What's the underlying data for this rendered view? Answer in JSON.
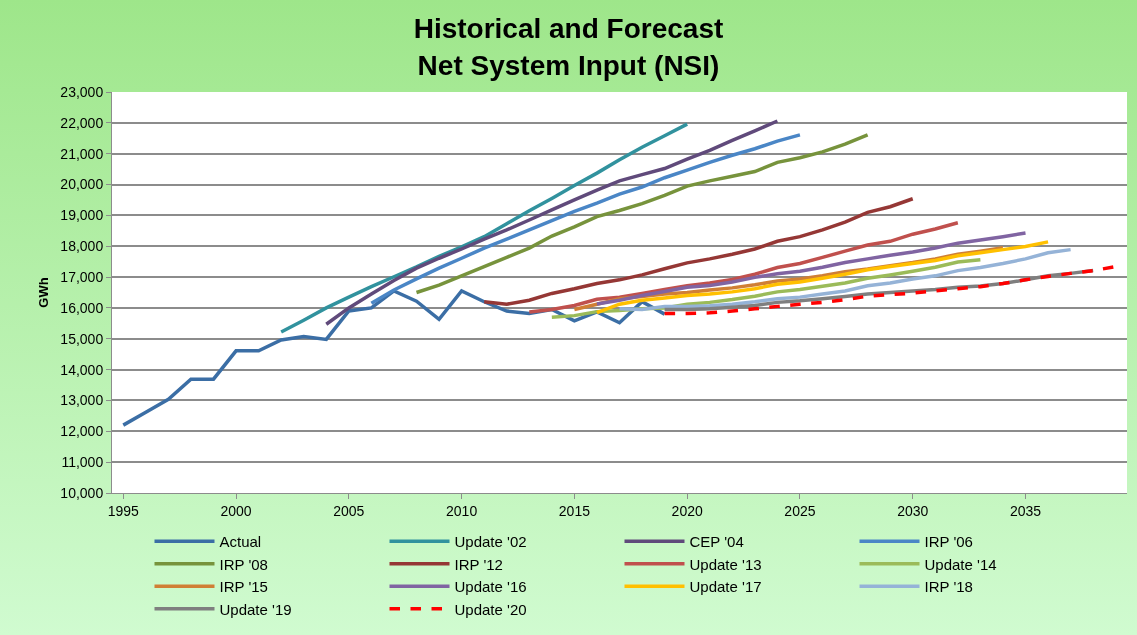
{
  "chart_data": {
    "type": "line",
    "title": "Historical and Forecast\nNet System Input (NSI)",
    "ylabel": "GWh",
    "xlim": [
      1994.5,
      2039.5
    ],
    "xticks": [
      1995,
      2000,
      2005,
      2010,
      2015,
      2020,
      2025,
      2030,
      2035
    ],
    "ylim": [
      10000,
      23000
    ],
    "yticks": [
      {
        "value": 10000,
        "label": "10,000"
      },
      {
        "value": 11000,
        "label": "11,000"
      },
      {
        "value": 12000,
        "label": "12,000"
      },
      {
        "value": 13000,
        "label": "13,000"
      },
      {
        "value": 14000,
        "label": "14,000"
      },
      {
        "value": 15000,
        "label": "15,000"
      },
      {
        "value": 16000,
        "label": "16,000"
      },
      {
        "value": 17000,
        "label": "17,000"
      },
      {
        "value": 18000,
        "label": "18,000"
      },
      {
        "value": 19000,
        "label": "19,000"
      },
      {
        "value": 20000,
        "label": "20,000"
      },
      {
        "value": 21000,
        "label": "21,000"
      },
      {
        "value": 22000,
        "label": "22,000"
      },
      {
        "value": 23000,
        "label": "23,000"
      }
    ],
    "grid": "y",
    "legend": "bottom",
    "marker": "none",
    "series": [
      {
        "name": "Actual",
        "color": "#3b6ea5",
        "line_style": "solid",
        "x": [
          1995,
          1996,
          1997,
          1998,
          1999,
          2000,
          2001,
          2002,
          2003,
          2004,
          2005,
          2006,
          2007,
          2008,
          2009,
          2010,
          2011,
          2012,
          2013,
          2014,
          2015,
          2016,
          2017,
          2018,
          2019
        ],
        "values": [
          12200,
          12620,
          13040,
          13690,
          13690,
          14610,
          14610,
          14960,
          15070,
          14980,
          15900,
          16000,
          16550,
          16220,
          15630,
          16550,
          16200,
          15900,
          15820,
          15950,
          15580,
          15870,
          15520,
          16200,
          15800
        ]
      },
      {
        "name": "Update '02",
        "color": "#31929e",
        "line_style": "solid",
        "x": [
          2002,
          2003,
          2004,
          2005,
          2006,
          2007,
          2008,
          2009,
          2010,
          2011,
          2012,
          2013,
          2014,
          2015,
          2016,
          2017,
          2018,
          2019,
          2020
        ],
        "values": [
          15220,
          15600,
          16000,
          16350,
          16690,
          17010,
          17330,
          17670,
          17980,
          18310,
          18730,
          19150,
          19550,
          19970,
          20370,
          20800,
          21210,
          21580,
          21960
        ]
      },
      {
        "name": "CEP '04",
        "color": "#604a7b",
        "line_style": "solid",
        "x": [
          2004,
          2005,
          2006,
          2007,
          2008,
          2009,
          2010,
          2011,
          2012,
          2013,
          2014,
          2015,
          2016,
          2017,
          2018,
          2019,
          2020,
          2021,
          2022,
          2023,
          2024
        ],
        "values": [
          15470,
          16000,
          16450,
          16890,
          17290,
          17610,
          17910,
          18230,
          18530,
          18850,
          19180,
          19500,
          19820,
          20120,
          20320,
          20520,
          20820,
          21110,
          21430,
          21740,
          22060
        ]
      },
      {
        "name": "IRP '06",
        "color": "#4a86c6",
        "line_style": "solid",
        "x": [
          2006,
          2007,
          2008,
          2009,
          2010,
          2011,
          2012,
          2013,
          2014,
          2015,
          2016,
          2017,
          2018,
          2019,
          2020,
          2021,
          2022,
          2023,
          2024,
          2025
        ],
        "values": [
          16150,
          16580,
          16940,
          17290,
          17610,
          17940,
          18230,
          18530,
          18830,
          19130,
          19400,
          19690,
          19920,
          20220,
          20470,
          20720,
          20950,
          21160,
          21410,
          21610
        ]
      },
      {
        "name": "IRP '08",
        "color": "#77933c",
        "line_style": "solid",
        "x": [
          2008,
          2009,
          2010,
          2011,
          2012,
          2013,
          2014,
          2015,
          2016,
          2017,
          2018,
          2019,
          2020,
          2021,
          2022,
          2023,
          2024,
          2025,
          2026,
          2027,
          2028
        ],
        "values": [
          16500,
          16740,
          17040,
          17340,
          17640,
          17940,
          18330,
          18630,
          18960,
          19160,
          19380,
          19650,
          19950,
          20120,
          20270,
          20420,
          20720,
          20870,
          21060,
          21310,
          21610
        ]
      },
      {
        "name": "IRP '12",
        "color": "#953735",
        "line_style": "solid",
        "x": [
          2011,
          2012,
          2013,
          2014,
          2015,
          2016,
          2017,
          2018,
          2019,
          2020,
          2021,
          2022,
          2023,
          2024,
          2025,
          2026,
          2027,
          2028,
          2029,
          2030
        ],
        "values": [
          16200,
          16120,
          16250,
          16470,
          16620,
          16790,
          16910,
          17070,
          17270,
          17460,
          17590,
          17740,
          17910,
          18160,
          18310,
          18530,
          18780,
          19100,
          19280,
          19540
        ]
      },
      {
        "name": "Update '13",
        "color": "#c0504d",
        "line_style": "solid",
        "x": [
          2013,
          2014,
          2015,
          2016,
          2017,
          2018,
          2019,
          2020,
          2021,
          2022,
          2023,
          2024,
          2025,
          2026,
          2027,
          2028,
          2029,
          2030,
          2031,
          2032
        ],
        "values": [
          15870,
          15950,
          16080,
          16280,
          16350,
          16470,
          16600,
          16720,
          16810,
          16920,
          17090,
          17310,
          17440,
          17640,
          17840,
          18040,
          18160,
          18390,
          18560,
          18760
        ]
      },
      {
        "name": "Update '14",
        "color": "#9bbb59",
        "line_style": "solid",
        "x": [
          2014,
          2015,
          2016,
          2017,
          2018,
          2019,
          2020,
          2021,
          2022,
          2023,
          2024,
          2025,
          2026,
          2027,
          2028,
          2029,
          2030,
          2031,
          2032,
          2033
        ],
        "values": [
          15700,
          15750,
          15880,
          15920,
          15970,
          16000,
          16120,
          16180,
          16270,
          16380,
          16520,
          16600,
          16700,
          16810,
          16960,
          17070,
          17190,
          17320,
          17490,
          17560
        ]
      },
      {
        "name": "IRP '15",
        "color": "#d07f35",
        "line_style": "solid",
        "x": [
          2015,
          2016,
          2017,
          2018,
          2019,
          2020,
          2021,
          2022,
          2023,
          2024,
          2025,
          2026,
          2027,
          2028,
          2029,
          2030,
          2031,
          2032,
          2033,
          2034
        ],
        "values": [
          15950,
          16120,
          16300,
          16370,
          16450,
          16500,
          16580,
          16650,
          16750,
          16870,
          16940,
          17040,
          17170,
          17260,
          17370,
          17470,
          17590,
          17740,
          17840,
          17950
        ]
      },
      {
        "name": "Update '16",
        "color": "#8064a2",
        "line_style": "solid",
        "x": [
          2016,
          2017,
          2018,
          2019,
          2020,
          2021,
          2022,
          2023,
          2024,
          2025,
          2026,
          2027,
          2028,
          2029,
          2030,
          2031,
          2032,
          2033,
          2034,
          2035
        ],
        "values": [
          16130,
          16250,
          16400,
          16530,
          16670,
          16730,
          16840,
          16990,
          17110,
          17190,
          17320,
          17470,
          17590,
          17710,
          17810,
          17940,
          18100,
          18200,
          18310,
          18430
        ]
      },
      {
        "name": "Update '17",
        "color": "#ffc000",
        "line_style": "solid",
        "x": [
          2016,
          2017,
          2018,
          2019,
          2020,
          2021,
          2022,
          2023,
          2024,
          2025,
          2026,
          2027,
          2028,
          2029,
          2030,
          2031,
          2032,
          2033,
          2034,
          2035,
          2036
        ],
        "values": [
          15850,
          16120,
          16250,
          16320,
          16400,
          16450,
          16520,
          16620,
          16770,
          16840,
          16960,
          17090,
          17240,
          17340,
          17440,
          17540,
          17690,
          17790,
          17890,
          17990,
          18140
        ]
      },
      {
        "name": "IRP '18",
        "color": "#95b3d7",
        "line_style": "solid",
        "x": [
          2017,
          2018,
          2019,
          2020,
          2021,
          2022,
          2023,
          2024,
          2025,
          2026,
          2027,
          2028,
          2029,
          2030,
          2031,
          2032,
          2033,
          2034,
          2035,
          2036,
          2037
        ],
        "values": [
          15970,
          15950,
          16050,
          16050,
          16070,
          16120,
          16200,
          16300,
          16350,
          16450,
          16550,
          16720,
          16810,
          16940,
          17040,
          17210,
          17310,
          17440,
          17590,
          17790,
          17890
        ]
      },
      {
        "name": "Update '19",
        "color": "#7f7f7f",
        "line_style": "solid",
        "x": [
          2019,
          2020,
          2021,
          2022,
          2023,
          2024,
          2025,
          2026,
          2027,
          2028,
          2029,
          2030,
          2031,
          2032,
          2033,
          2034,
          2035,
          2036,
          2037,
          2038
        ],
        "values": [
          15950,
          15950,
          15970,
          16020,
          16080,
          16180,
          16230,
          16300,
          16370,
          16450,
          16500,
          16550,
          16600,
          16670,
          16710,
          16790,
          16910,
          17040,
          17120,
          17210
        ]
      },
      {
        "name": "Update '20",
        "color": "#ff0000",
        "line_style": "dashed",
        "x": [
          2019,
          2020,
          2021,
          2022,
          2023,
          2024,
          2025,
          2026,
          2027,
          2028,
          2029,
          2030,
          2031,
          2032,
          2033,
          2034,
          2035,
          2036,
          2037,
          2038,
          2039
        ],
        "values": [
          15820,
          15820,
          15840,
          15900,
          15970,
          16050,
          16120,
          16180,
          16270,
          16380,
          16430,
          16480,
          16550,
          16620,
          16690,
          16790,
          16910,
          17020,
          17120,
          17210,
          17340
        ]
      }
    ]
  }
}
